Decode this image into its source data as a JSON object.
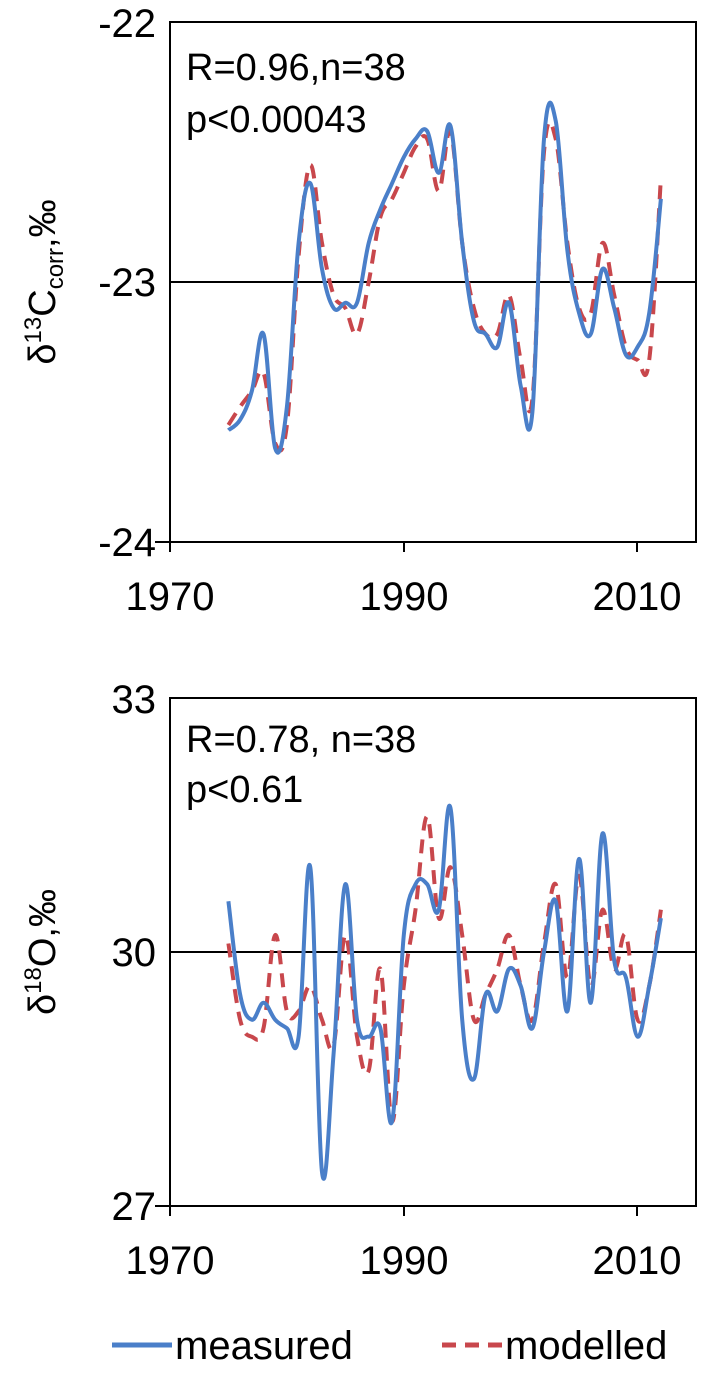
{
  "chart_data": [
    {
      "type": "line",
      "ylabel": "δ13Ccorr,‰",
      "ylim": [
        -24,
        -22
      ],
      "yticks": [
        "-24",
        "-23",
        "-22"
      ],
      "xlim": [
        1970,
        2015
      ],
      "xticks": [
        "1970",
        "1990",
        "2010"
      ],
      "reference_line": -23,
      "annotations": [
        "R=0.96,n=38",
        "p<0.00043"
      ],
      "grid": false,
      "x": [
        1975,
        1976,
        1977,
        1978,
        1979,
        1980,
        1981,
        1982,
        1983,
        1984,
        1985,
        1986,
        1987,
        1988,
        1989,
        1990,
        1991,
        1992,
        1993,
        1994,
        1995,
        1996,
        1997,
        1998,
        1999,
        2000,
        2001,
        2002,
        2003,
        2004,
        2005,
        2006,
        2007,
        2008,
        2009,
        2010,
        2011,
        2012
      ],
      "series": [
        {
          "name": "measured",
          "color": "#4a7fc9",
          "dash": "solid",
          "values": [
            -23.57,
            -23.53,
            -23.42,
            -23.2,
            -23.64,
            -23.48,
            -22.85,
            -22.62,
            -22.95,
            -23.1,
            -23.08,
            -23.08,
            -22.85,
            -22.72,
            -22.62,
            -22.52,
            -22.45,
            -22.42,
            -22.58,
            -22.4,
            -22.85,
            -23.15,
            -23.2,
            -23.25,
            -23.08,
            -23.4,
            -23.5,
            -22.45,
            -22.38,
            -22.88,
            -23.12,
            -23.2,
            -22.95,
            -23.1,
            -23.28,
            -23.25,
            -23.12,
            -22.68
          ]
        },
        {
          "name": "modelled",
          "color": "#c8474c",
          "dash": "dashed",
          "values": [
            -23.55,
            -23.48,
            -23.42,
            -23.35,
            -23.62,
            -23.55,
            -22.9,
            -22.55,
            -22.85,
            -23.05,
            -23.1,
            -23.2,
            -23.0,
            -22.75,
            -22.68,
            -22.58,
            -22.48,
            -22.45,
            -22.65,
            -22.42,
            -22.85,
            -23.1,
            -23.2,
            -23.2,
            -23.05,
            -23.3,
            -23.45,
            -22.5,
            -22.45,
            -22.85,
            -23.1,
            -23.12,
            -22.85,
            -23.05,
            -23.25,
            -23.3,
            -23.3,
            -22.6
          ]
        }
      ]
    },
    {
      "type": "line",
      "ylabel": "δ18O,‰",
      "ylim": [
        27,
        33
      ],
      "yticks": [
        "27",
        "30",
        "33"
      ],
      "xlim": [
        1970,
        2015
      ],
      "xticks": [
        "1970",
        "1990",
        "2010"
      ],
      "reference_line": 30,
      "annotations": [
        "R=0.78, n=38",
        "p<0.61"
      ],
      "grid": false,
      "x": [
        1975,
        1976,
        1977,
        1978,
        1979,
        1980,
        1981,
        1982,
        1983,
        1984,
        1985,
        1986,
        1987,
        1988,
        1989,
        1990,
        1991,
        1992,
        1993,
        1994,
        1995,
        1996,
        1997,
        1998,
        1999,
        2000,
        2001,
        2002,
        2003,
        2004,
        2005,
        2006,
        2007,
        2008,
        2009,
        2010,
        2011,
        2012
      ],
      "series": [
        {
          "name": "measured",
          "color": "#4a7fc9",
          "dash": "solid",
          "values": [
            30.6,
            29.5,
            29.2,
            29.4,
            29.2,
            29.1,
            29.0,
            31.0,
            27.4,
            28.8,
            30.8,
            29.2,
            29.0,
            29.1,
            28.0,
            30.2,
            30.8,
            30.8,
            30.5,
            31.7,
            29.2,
            28.5,
            29.5,
            29.3,
            29.8,
            29.6,
            29.1,
            30.0,
            30.6,
            29.3,
            31.1,
            29.4,
            31.4,
            29.9,
            29.7,
            29.0,
            29.6,
            30.4
          ]
        },
        {
          "name": "modelled",
          "color": "#c8474c",
          "dash": "dashed",
          "values": [
            30.1,
            29.2,
            29.0,
            29.1,
            30.2,
            29.3,
            29.3,
            29.6,
            29.2,
            28.9,
            30.2,
            29.0,
            28.6,
            29.8,
            28.0,
            29.6,
            30.5,
            31.6,
            30.4,
            31.0,
            30.2,
            29.2,
            29.5,
            29.8,
            30.2,
            29.6,
            29.2,
            30.1,
            30.8,
            29.7,
            30.9,
            29.6,
            30.5,
            29.8,
            30.2,
            29.2,
            29.6,
            30.5
          ]
        }
      ]
    }
  ],
  "legend": {
    "items": [
      {
        "label": "measured",
        "color": "#4a7fc9"
      },
      {
        "label": "modelled",
        "color": "#c8474c"
      }
    ]
  }
}
